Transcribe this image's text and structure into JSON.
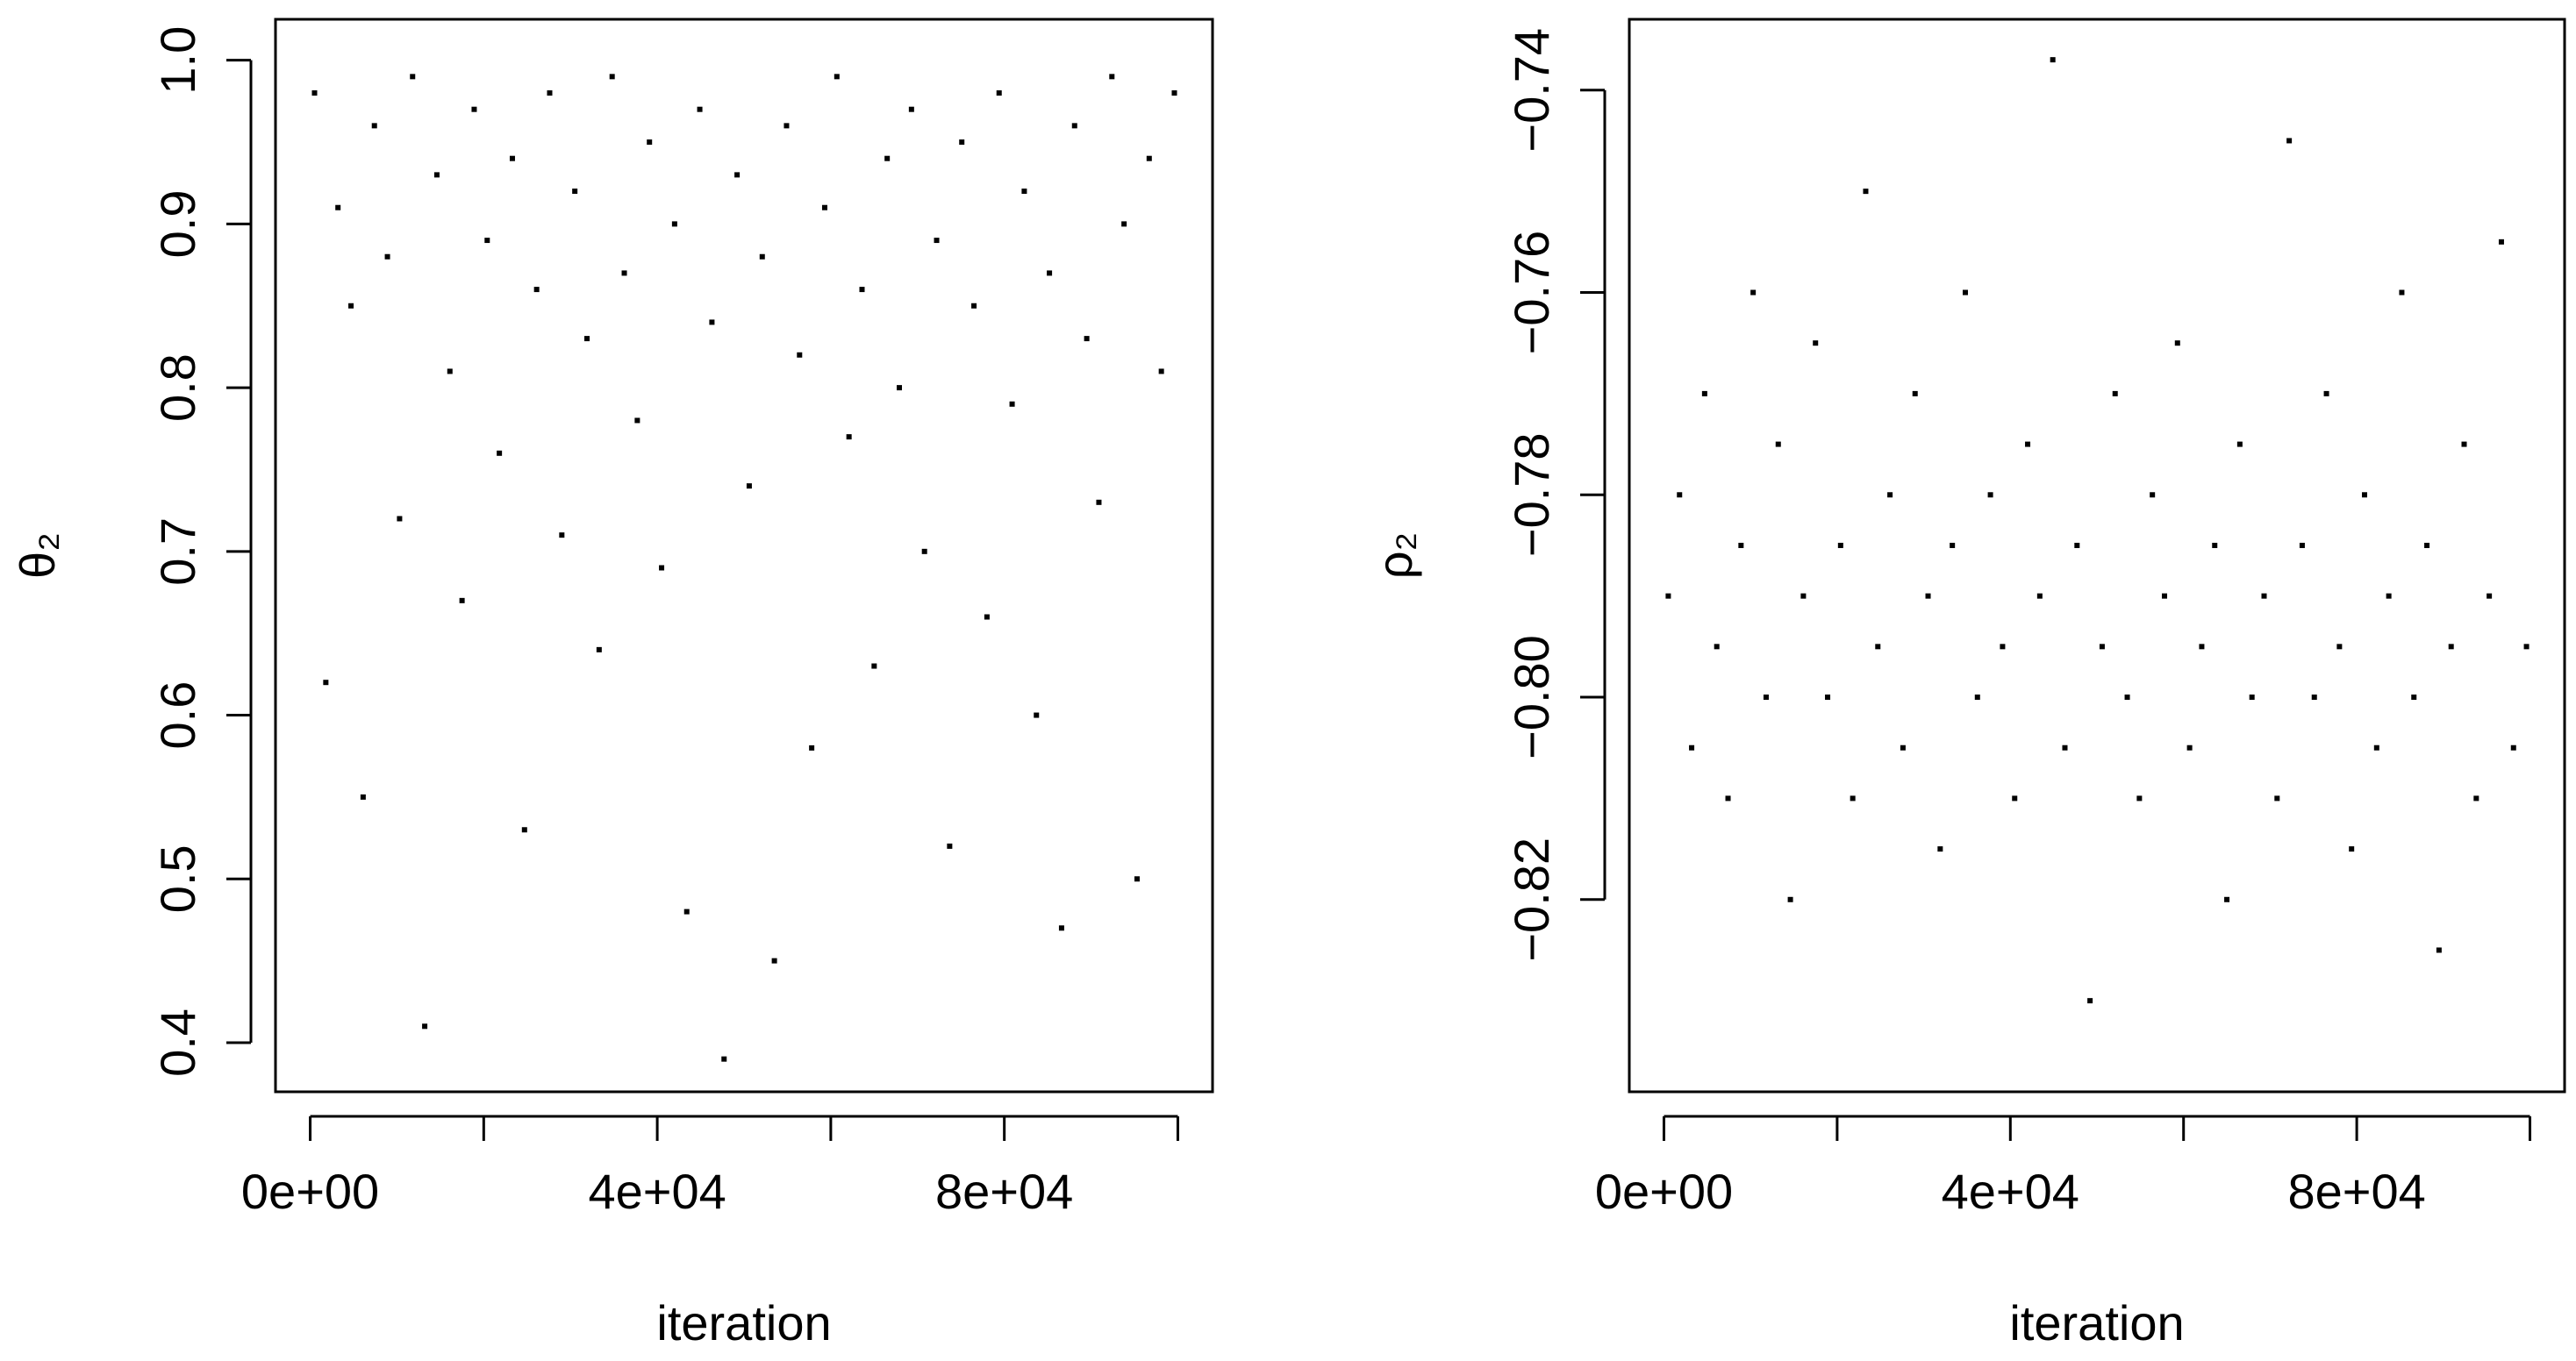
{
  "chart_data": [
    {
      "type": "scatter",
      "xlabel": "iteration",
      "ylabel": "θ₂",
      "color": "#000000",
      "xlim": [
        -4000,
        104000
      ],
      "ylim": [
        0.37,
        1.025
      ],
      "xticks": [
        {
          "value": 0,
          "label": "0e+00"
        },
        {
          "value": 20000,
          "label": null
        },
        {
          "value": 40000,
          "label": "4e+04"
        },
        {
          "value": 60000,
          "label": null
        },
        {
          "value": 80000,
          "label": "8e+04"
        },
        {
          "value": 100000,
          "label": null
        }
      ],
      "yticks": [
        0.4,
        0.5,
        0.6,
        0.7,
        0.8,
        0.9,
        {
          "value": 1,
          "label": "1.0"
        }
      ],
      "x": [
        500,
        1800,
        3200,
        4700,
        6100,
        7400,
        8900,
        10300,
        11800,
        13200,
        14600,
        16100,
        17500,
        18900,
        20400,
        21800,
        23300,
        24700,
        26100,
        27600,
        29000,
        30500,
        31900,
        33300,
        34800,
        36200,
        37700,
        39100,
        40500,
        42000,
        43400,
        44900,
        46300,
        47700,
        49200,
        50600,
        52100,
        53500,
        54900,
        56400,
        57800,
        59300,
        60700,
        62100,
        63600,
        65000,
        66500,
        67900,
        69300,
        70800,
        72200,
        73700,
        75100,
        76500,
        78000,
        79400,
        80900,
        82300,
        83700,
        85200,
        86600,
        88100,
        89500,
        90900,
        92400,
        93800,
        95300,
        96700,
        98100,
        99600
      ],
      "y": [
        0.98,
        0.62,
        0.91,
        0.85,
        0.55,
        0.96,
        0.88,
        0.72,
        0.99,
        0.41,
        0.93,
        0.81,
        0.67,
        0.97,
        0.89,
        0.76,
        0.94,
        0.53,
        0.86,
        0.98,
        0.71,
        0.92,
        0.83,
        0.64,
        0.99,
        0.87,
        0.78,
        0.95,
        0.69,
        0.9,
        0.48,
        0.97,
        0.84,
        0.39,
        0.93,
        0.74,
        0.88,
        0.45,
        0.96,
        0.82,
        0.58,
        0.91,
        0.99,
        0.77,
        0.86,
        0.63,
        0.94,
        0.8,
        0.97,
        0.7,
        0.89,
        0.52,
        0.95,
        0.85,
        0.66,
        0.98,
        0.79,
        0.92,
        0.6,
        0.87,
        0.47,
        0.96,
        0.83,
        0.73,
        0.99,
        0.9,
        0.5,
        0.94,
        0.81,
        0.98
      ]
    },
    {
      "type": "scatter",
      "xlabel": "iteration",
      "ylabel": "ρ₂",
      "color": "#000000",
      "xlim": [
        -4000,
        104000
      ],
      "ylim": [
        -0.839,
        -0.733
      ],
      "xticks": [
        {
          "value": 0,
          "label": "0e+00"
        },
        {
          "value": 20000,
          "label": null
        },
        {
          "value": 40000,
          "label": "4e+04"
        },
        {
          "value": 60000,
          "label": null
        },
        {
          "value": 80000,
          "label": "8e+04"
        },
        {
          "value": 100000,
          "label": null
        }
      ],
      "yticks": [
        {
          "value": -0.82,
          "label": "−0.82"
        },
        {
          "value": -0.8,
          "label": "−0.80"
        },
        {
          "value": -0.78,
          "label": "−0.78"
        },
        {
          "value": -0.76,
          "label": "−0.76"
        },
        {
          "value": -0.74,
          "label": "−0.74"
        }
      ],
      "x": [
        500,
        1800,
        3200,
        4700,
        6100,
        7400,
        8900,
        10300,
        11800,
        13200,
        14600,
        16100,
        17500,
        18900,
        20400,
        21800,
        23300,
        24700,
        26100,
        27600,
        29000,
        30500,
        31900,
        33300,
        34800,
        36200,
        37700,
        39100,
        40500,
        42000,
        43400,
        44900,
        46300,
        47700,
        49200,
        50600,
        52100,
        53500,
        54900,
        56400,
        57800,
        59300,
        60700,
        62100,
        63600,
        65000,
        66500,
        67900,
        69300,
        70800,
        72200,
        73700,
        75100,
        76500,
        78000,
        79400,
        80900,
        82300,
        83700,
        85200,
        86600,
        88100,
        89500,
        90900,
        92400,
        93800,
        95300,
        96700,
        98100,
        99600
      ],
      "y": [
        -0.79,
        -0.78,
        -0.805,
        -0.77,
        -0.795,
        -0.81,
        -0.785,
        -0.76,
        -0.8,
        -0.775,
        -0.82,
        -0.79,
        -0.765,
        -0.8,
        -0.785,
        -0.81,
        -0.75,
        -0.795,
        -0.78,
        -0.805,
        -0.77,
        -0.79,
        -0.815,
        -0.785,
        -0.76,
        -0.8,
        -0.78,
        -0.795,
        -0.81,
        -0.775,
        -0.79,
        -0.737,
        -0.805,
        -0.785,
        -0.83,
        -0.795,
        -0.77,
        -0.8,
        -0.81,
        -0.78,
        -0.79,
        -0.765,
        -0.805,
        -0.795,
        -0.785,
        -0.82,
        -0.775,
        -0.8,
        -0.79,
        -0.81,
        -0.745,
        -0.785,
        -0.8,
        -0.77,
        -0.795,
        -0.815,
        -0.78,
        -0.805,
        -0.79,
        -0.76,
        -0.8,
        -0.785,
        -0.825,
        -0.795,
        -0.775,
        -0.81,
        -0.79,
        -0.755,
        -0.805,
        -0.795
      ]
    }
  ]
}
